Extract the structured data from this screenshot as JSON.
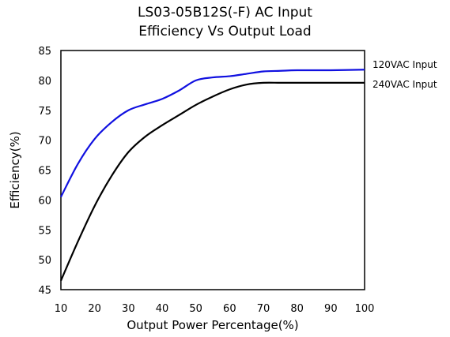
{
  "chart_data": {
    "type": "line",
    "title": "LS03-05B12S(-F) AC Input",
    "subtitle": "Efficiency Vs Output Load",
    "xlabel": "Output Power Percentage(%)",
    "ylabel": "Efficiency(%)",
    "xlim": [
      10,
      100
    ],
    "ylim": [
      45,
      85
    ],
    "xticks": [
      10,
      20,
      30,
      40,
      50,
      60,
      70,
      80,
      90,
      100
    ],
    "yticks": [
      45,
      50,
      55,
      60,
      65,
      70,
      75,
      80,
      85
    ],
    "grid": false,
    "series": [
      {
        "name": "120VAC Input",
        "color": "#1010e0",
        "x": [
          10,
          15,
          20,
          25,
          30,
          35,
          40,
          45,
          50,
          55,
          60,
          65,
          70,
          75,
          80,
          90,
          100
        ],
        "y": [
          60.5,
          66,
          70.2,
          73,
          75,
          76,
          76.9,
          78.3,
          80,
          80.5,
          80.7,
          81.1,
          81.5,
          81.6,
          81.7,
          81.7,
          81.8
        ]
      },
      {
        "name": "240VAC Input",
        "color": "#000000",
        "x": [
          10,
          15,
          20,
          25,
          30,
          35,
          40,
          45,
          50,
          55,
          60,
          65,
          70,
          75,
          80,
          90,
          100
        ],
        "y": [
          46.5,
          53,
          59,
          64,
          68,
          70.6,
          72.5,
          74.2,
          75.9,
          77.3,
          78.5,
          79.3,
          79.6,
          79.6,
          79.6,
          79.6,
          79.6
        ]
      }
    ]
  }
}
